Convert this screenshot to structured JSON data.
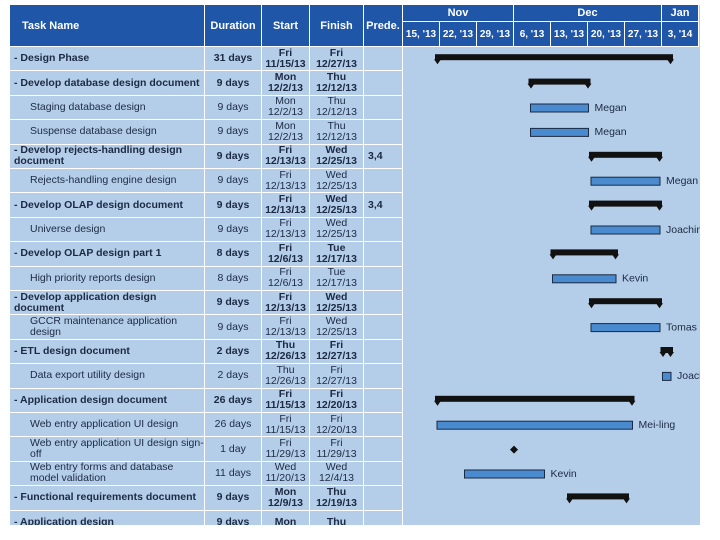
{
  "header": {
    "columns": [
      "Task Name",
      "Duration",
      "Start",
      "Finish",
      "Prede."
    ],
    "months": [
      "Nov",
      "Dec",
      "Jan"
    ],
    "weeks": [
      "15, '13",
      "22, '13",
      "29, '13",
      "6, '13",
      "13, '13",
      "20, '13",
      "27, '13",
      "3, '14"
    ]
  },
  "rows": [
    {
      "name": "- Design Phase",
      "duration": "31 days",
      "start": {
        "day": "Fri",
        "date": "11/15/13"
      },
      "finish": {
        "day": "Fri",
        "date": "12/27/13"
      }
    },
    {
      "name": "- Develop database design document",
      "duration": "9 days",
      "start": {
        "day": "Mon",
        "date": "12/2/13"
      },
      "finish": {
        "day": "Thu",
        "date": "12/12/13"
      }
    },
    {
      "name": "Staging database design",
      "duration": "9 days",
      "start": {
        "day": "Mon",
        "date": "12/2/13"
      },
      "finish": {
        "day": "Thu",
        "date": "12/12/13"
      },
      "resource": "Megan"
    },
    {
      "name": "Suspense database design",
      "duration": "9 days",
      "start": {
        "day": "Mon",
        "date": "12/2/13"
      },
      "finish": {
        "day": "Thu",
        "date": "12/12/13"
      },
      "resource": "Megan"
    },
    {
      "name": "- Develop rejects-handling design document",
      "duration": "9 days",
      "start": {
        "day": "Fri",
        "date": "12/13/13"
      },
      "finish": {
        "day": "Wed",
        "date": "12/25/13"
      },
      "pred": "3,4"
    },
    {
      "name": "Rejects-handling engine design",
      "duration": "9 days",
      "start": {
        "day": "Fri",
        "date": "12/13/13"
      },
      "finish": {
        "day": "Wed",
        "date": "12/25/13"
      },
      "resource": "Megan"
    },
    {
      "name": "- Develop OLAP design document",
      "duration": "9 days",
      "start": {
        "day": "Fri",
        "date": "12/13/13"
      },
      "finish": {
        "day": "Wed",
        "date": "12/25/13"
      },
      "pred": "3,4"
    },
    {
      "name": "Universe design",
      "duration": "9 days",
      "start": {
        "day": "Fri",
        "date": "12/13/13"
      },
      "finish": {
        "day": "Wed",
        "date": "12/25/13"
      },
      "resource": "Joachim"
    },
    {
      "name": "- Develop OLAP design part 1",
      "duration": "8 days",
      "start": {
        "day": "Fri",
        "date": "12/6/13"
      },
      "finish": {
        "day": "Tue",
        "date": "12/17/13"
      }
    },
    {
      "name": "High priority reports design",
      "duration": "8 days",
      "start": {
        "day": "Fri",
        "date": "12/6/13"
      },
      "finish": {
        "day": "Tue",
        "date": "12/17/13"
      },
      "resource": "Kevin"
    },
    {
      "name": "- Develop application design document",
      "duration": "9 days",
      "start": {
        "day": "Fri",
        "date": "12/13/13"
      },
      "finish": {
        "day": "Wed",
        "date": "12/25/13"
      }
    },
    {
      "name": "GCCR maintenance application design",
      "duration": "9 days",
      "start": {
        "day": "Fri",
        "date": "12/13/13"
      },
      "finish": {
        "day": "Wed",
        "date": "12/25/13"
      },
      "resource": "Tomas"
    },
    {
      "name": "- ETL design document",
      "duration": "2 days",
      "start": {
        "day": "Thu",
        "date": "12/26/13"
      },
      "finish": {
        "day": "Fri",
        "date": "12/27/13"
      }
    },
    {
      "name": "Data export utility design",
      "duration": "2 days",
      "start": {
        "day": "Thu",
        "date": "12/26/13"
      },
      "finish": {
        "day": "Fri",
        "date": "12/27/13"
      },
      "resource": "Joachim"
    },
    {
      "name": "- Application design document",
      "duration": "26 days",
      "start": {
        "day": "Fri",
        "date": "11/15/13"
      },
      "finish": {
        "day": "Fri",
        "date": "12/20/13"
      }
    },
    {
      "name": "Web entry application UI design",
      "duration": "26 days",
      "start": {
        "day": "Fri",
        "date": "11/15/13"
      },
      "finish": {
        "day": "Fri",
        "date": "12/20/13"
      },
      "resource": "Mei-ling"
    },
    {
      "name": "Web entry application UI design sign-off",
      "duration": "1 day",
      "start": {
        "day": "Fri",
        "date": "11/29/13"
      },
      "finish": {
        "day": "Fri",
        "date": "11/29/13"
      }
    },
    {
      "name": "Web entry forms and database model validation",
      "duration": "11 days",
      "start": {
        "day": "Wed",
        "date": "11/20/13"
      },
      "finish": {
        "day": "Wed",
        "date": "12/4/13"
      },
      "resource": "Kevin"
    },
    {
      "name": "- Functional requirements document",
      "duration": "9 days",
      "start": {
        "day": "Mon",
        "date": "12/9/13"
      },
      "finish": {
        "day": "Thu",
        "date": "12/19/13"
      }
    },
    {
      "name": "- Application design",
      "duration": "9 days",
      "start": {
        "day": "Mon"
      },
      "finish": {
        "day": "Thu"
      }
    }
  ]
}
